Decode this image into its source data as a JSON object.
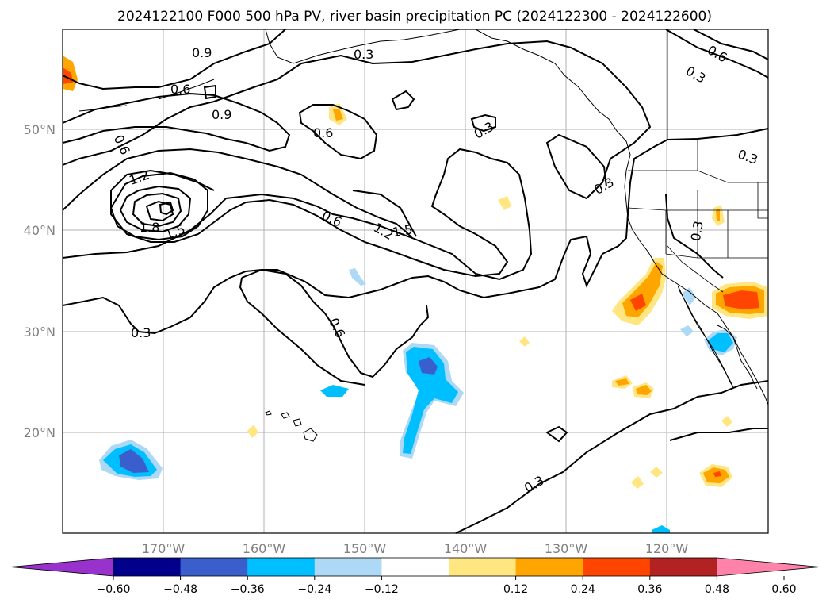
{
  "title": "2024122100 F000 500 hPa PV, river basin precipitation PC (2024122300 - 2024122600)",
  "map": {
    "projection": "PlateCarree",
    "lon_range": [
      -180,
      -110
    ],
    "lat_range": [
      10,
      60
    ],
    "lat_ticks": [
      "20°N",
      "30°N",
      "40°N",
      "50°N"
    ],
    "lon_ticks": [
      "170°W",
      "160°W",
      "150°W",
      "140°W",
      "130°W",
      "120°W"
    ],
    "gridlines": true,
    "coastlines": true,
    "state_borders": true
  },
  "contour_labels": [
    "0.9",
    "0.3",
    "0.6",
    "0.6",
    "0.9",
    "0.6",
    "0.3",
    "0.6",
    "0.3",
    "0.3",
    "1.2",
    "1.8",
    "1.5",
    "0.6",
    "1.2",
    "1.5",
    "0.3",
    "0.3",
    "0.6",
    "0.3",
    "0.3"
  ],
  "colorbar": {
    "ticks": [
      "−0.60",
      "−0.48",
      "−0.36",
      "−0.24",
      "−0.12",
      "0.12",
      "0.24",
      "0.36",
      "0.48",
      "0.60"
    ],
    "colors": [
      "#9932cc",
      "#00008b",
      "#3a5fcd",
      "#00bfff",
      "#add8f6",
      "#ffffff",
      "#ffe680",
      "#ffa500",
      "#ff4500",
      "#b22222",
      "#ff82ab"
    ],
    "extend": "both"
  }
}
